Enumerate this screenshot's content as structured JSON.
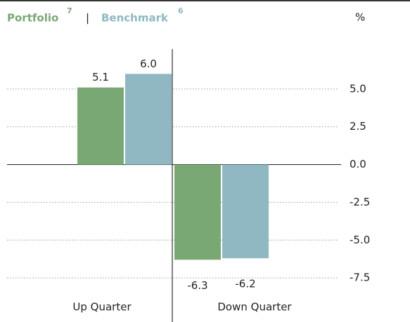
{
  "chart_data": {
    "type": "bar",
    "categories": [
      "Up Quarter",
      "Down Quarter"
    ],
    "series": [
      {
        "name": "Portfolio",
        "note": "7",
        "color": "#7aa874",
        "values": [
          5.1,
          -6.3
        ],
        "value_labels": [
          "5.1",
          "-6.3"
        ]
      },
      {
        "name": "Benchmark",
        "note": "6",
        "color": "#8fb8c2",
        "values": [
          6.0,
          -6.2
        ],
        "value_labels": [
          "6.0",
          "-6.2"
        ]
      }
    ],
    "legend_separator": "|",
    "unit_label": "%",
    "ylim": [
      -10,
      7.5
    ],
    "yticks": [
      {
        "value": 5.0,
        "label": "5.0"
      },
      2.5,
      {
        "value": 0.0,
        "label": "0.0"
      },
      -2.5,
      {
        "value": -5.0,
        "label": "-5.0"
      },
      -7.5
    ],
    "grid": true
  }
}
